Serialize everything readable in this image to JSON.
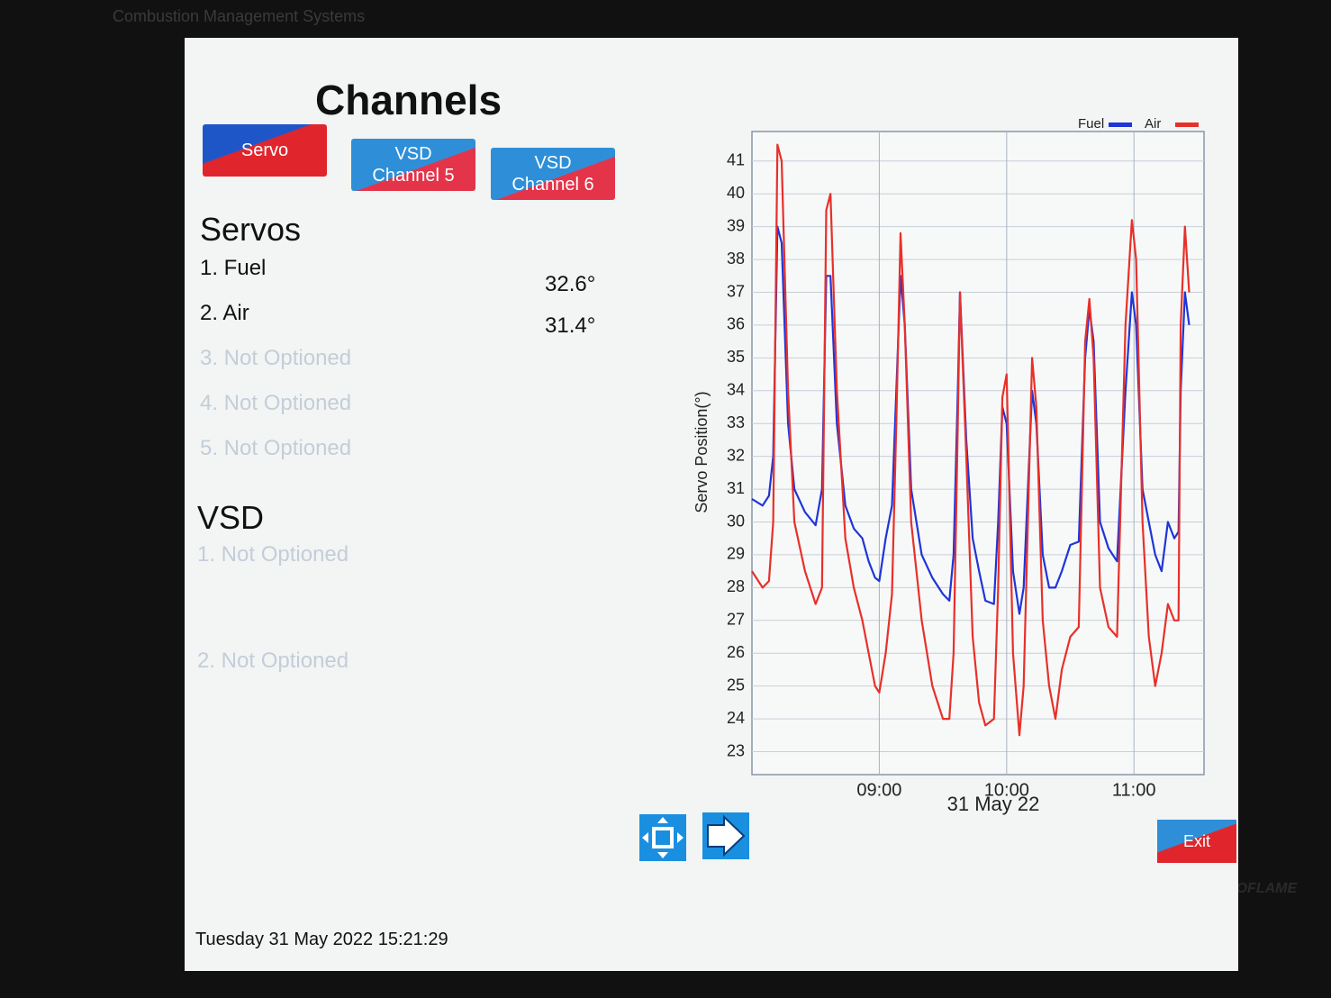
{
  "bezel": {
    "brand_subtitle": "Combustion Management Systems",
    "brand": "AUTOFLAME"
  },
  "header": {
    "title": "Channels"
  },
  "tabs": [
    {
      "lines": [
        "Servo"
      ]
    },
    {
      "lines": [
        "VSD",
        "Channel 5"
      ]
    },
    {
      "lines": [
        "VSD",
        "Channel 6"
      ]
    }
  ],
  "servos": {
    "heading": "Servos",
    "items": [
      {
        "label": "1. Fuel",
        "reading": "32.6°"
      },
      {
        "label": "2. Air",
        "reading": "31.4°"
      },
      {
        "label": "3. Not Optioned"
      },
      {
        "label": "4. Not Optioned"
      },
      {
        "label": "5. Not Optioned"
      }
    ]
  },
  "vsd": {
    "heading": "VSD",
    "items": [
      "1. Not Optioned",
      "2. Not Optioned"
    ]
  },
  "footer": {
    "datetime": "Tuesday 31 May 2022 15:21:29",
    "exit": "Exit"
  },
  "chart_data": {
    "type": "line",
    "y_label": "Servo Position(°)",
    "x_label": "31 May 22",
    "x": [
      "08:00",
      "08:05",
      "08:08",
      "08:10",
      "08:12",
      "08:14",
      "08:17",
      "08:20",
      "08:25",
      "08:30",
      "08:33",
      "08:35",
      "08:37",
      "08:40",
      "08:44",
      "08:48",
      "08:52",
      "08:55",
      "08:58",
      "09:00",
      "09:03",
      "09:06",
      "09:08",
      "09:10",
      "09:12",
      "09:15",
      "09:20",
      "09:25",
      "09:30",
      "09:33",
      "09:35",
      "09:37",
      "09:38",
      "09:41",
      "09:44",
      "09:47",
      "09:50",
      "09:54",
      "09:56",
      "09:58",
      "10:00",
      "10:03",
      "10:06",
      "10:08",
      "10:10",
      "10:12",
      "10:14",
      "10:17",
      "10:20",
      "10:23",
      "10:26",
      "10:30",
      "10:34",
      "10:37",
      "10:39",
      "10:41",
      "10:44",
      "10:48",
      "10:52",
      "10:56",
      "10:59",
      "11:01",
      "11:04",
      "11:07",
      "11:10",
      "11:13",
      "11:16",
      "11:19",
      "11:21",
      "11:22",
      "11:24",
      "11:26"
    ],
    "series": [
      {
        "name": "Fuel",
        "color": "#1f35d8",
        "values": [
          30.7,
          30.5,
          30.8,
          32,
          39,
          38.5,
          33,
          31,
          30.3,
          29.9,
          31,
          37.5,
          37.5,
          33,
          30.5,
          29.8,
          29.5,
          28.8,
          28.3,
          28.2,
          29.5,
          30.5,
          34,
          37.5,
          36,
          31,
          29,
          28.3,
          27.8,
          27.6,
          29,
          34,
          37,
          32.5,
          29.5,
          28.5,
          27.6,
          27.5,
          30,
          33.5,
          33,
          28.5,
          27.2,
          28,
          31,
          34,
          33,
          29,
          28,
          28,
          28.5,
          29.3,
          29.4,
          35,
          36.5,
          35.5,
          30,
          29.2,
          28.8,
          34,
          37,
          36,
          31,
          30,
          29,
          28.5,
          30,
          29.5,
          29.7,
          34,
          37,
          36
        ]
      },
      {
        "name": "Air",
        "color": "#e8302a",
        "values": [
          28.5,
          28,
          28.2,
          30,
          41.5,
          41,
          34,
          30,
          28.5,
          27.5,
          28,
          39.5,
          40,
          34,
          29.5,
          28,
          27,
          26,
          25,
          24.8,
          26,
          27.8,
          33,
          38.8,
          36,
          30,
          27,
          25,
          24,
          24,
          26,
          33,
          37,
          32,
          26.5,
          24.5,
          23.8,
          24,
          28,
          33.8,
          34.5,
          26,
          23.5,
          25,
          30,
          35,
          33.5,
          27,
          25,
          24,
          25.5,
          26.5,
          26.8,
          35.5,
          36.8,
          35,
          28,
          26.8,
          26.5,
          36,
          39.2,
          38,
          30,
          26.5,
          25,
          26,
          27.5,
          27,
          27,
          36,
          39,
          37
        ]
      }
    ],
    "xlim": [
      "08:00",
      "11:33"
    ],
    "xticks": [
      "09:00",
      "10:00",
      "11:00"
    ],
    "ylim": [
      22.3,
      41.9
    ],
    "yticks": [
      23,
      24,
      25,
      26,
      27,
      28,
      29,
      30,
      31,
      32,
      33,
      34,
      35,
      36,
      37,
      38,
      39,
      40,
      41
    ],
    "grid": true,
    "legend": "top-right"
  }
}
